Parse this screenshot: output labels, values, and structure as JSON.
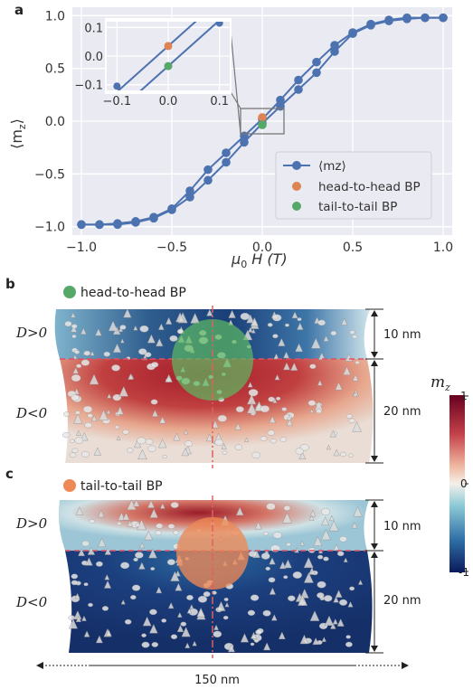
{
  "panel_labels": {
    "a": "a",
    "b": "b",
    "c": "c"
  },
  "colors": {
    "series_blue": "#4c72b0",
    "head_to_head": "#dd8452",
    "tail_to_tail": "#55a868",
    "green_sphere": "#5dbb63",
    "orange_sphere": "#ee8855",
    "plot_background": "#eaeaf2"
  },
  "chart_data": [
    {
      "type": "line",
      "xlabel": "μ0 H (T)",
      "ylabel": "⟨mz⟩",
      "xlim": [
        -1.05,
        1.05
      ],
      "ylim": [
        -1.08,
        1.08
      ],
      "x_ticks": [
        "−1.0",
        "−0.5",
        "0.0",
        "0.5",
        "1.0"
      ],
      "y_ticks": [
        "−1.0",
        "−0.5",
        "0.0",
        "0.5",
        "1.0"
      ],
      "grid": true,
      "legend_position": "lower-right",
      "series": [
        {
          "name": "⟨mz⟩",
          "branch": "up",
          "x": [
            -1.0,
            -0.9,
            -0.8,
            -0.7,
            -0.6,
            -0.5,
            -0.4,
            -0.3,
            -0.2,
            -0.1,
            0.0,
            0.1,
            0.2,
            0.3,
            0.4,
            0.5,
            0.6,
            0.7,
            0.8,
            0.9,
            1.0
          ],
          "y": [
            -0.98,
            -0.98,
            -0.97,
            -0.95,
            -0.91,
            -0.83,
            -0.66,
            -0.46,
            -0.3,
            -0.14,
            0.02,
            0.2,
            0.39,
            0.56,
            0.72,
            0.84,
            0.92,
            0.96,
            0.98,
            0.98,
            0.98
          ]
        },
        {
          "name": "⟨mz⟩",
          "branch": "down",
          "x": [
            -1.0,
            -0.9,
            -0.8,
            -0.7,
            -0.6,
            -0.5,
            -0.4,
            -0.3,
            -0.2,
            -0.1,
            0.0,
            0.1,
            0.2,
            0.3,
            0.4,
            0.5,
            0.6,
            0.7,
            0.8,
            0.9,
            1.0
          ],
          "y": [
            -0.98,
            -0.98,
            -0.98,
            -0.96,
            -0.92,
            -0.84,
            -0.72,
            -0.56,
            -0.39,
            -0.2,
            -0.02,
            0.14,
            0.3,
            0.46,
            0.66,
            0.83,
            0.91,
            0.95,
            0.97,
            0.98,
            0.98
          ]
        }
      ],
      "markers": [
        {
          "name": "head-to-head BP",
          "x": 0.0,
          "y": 0.035,
          "color": "#dd8452"
        },
        {
          "name": "tail-to-tail BP",
          "x": 0.0,
          "y": -0.035,
          "color": "#55a868"
        }
      ],
      "legend": [
        "⟨mz⟩",
        "head-to-head BP",
        "tail-to-tail BP"
      ]
    },
    {
      "type": "line",
      "role": "inset",
      "xlim": [
        -0.12,
        0.12
      ],
      "ylim": [
        -0.12,
        0.12
      ],
      "x_ticks": [
        "−0.1",
        "0.0",
        "0.1"
      ],
      "y_ticks": [
        "0.1",
        "0.0",
        "−0.1"
      ],
      "grid": true,
      "series": [
        {
          "name": "up",
          "x": [
            -0.1,
            0.1
          ],
          "y": [
            -0.125,
            0.195
          ]
        },
        {
          "name": "down",
          "x": [
            -0.1,
            0.1
          ],
          "y": [
            -0.195,
            0.125
          ]
        }
      ],
      "markers": [
        {
          "name": "head-to-head BP",
          "x": 0.0,
          "y": 0.035,
          "color": "#dd8452"
        },
        {
          "name": "tail-to-tail BP",
          "x": 0.0,
          "y": -0.035,
          "color": "#55a868"
        }
      ]
    }
  ],
  "legend": {
    "mz": "⟨mz⟩",
    "head_to_head": "head-to-head BP",
    "tail_to_tail": "tail-to-tail BP"
  },
  "axis": {
    "x_main": "μ",
    "x_sub": "0",
    "x_rest": " H (T)",
    "y_left": "⟨m",
    "y_sub": "z",
    "y_right": "⟩"
  },
  "panel_b": {
    "title": "head-to-head BP",
    "region_top": "D>0",
    "region_bottom": "D<0",
    "dim_top": "10 nm",
    "dim_bottom": "20 nm"
  },
  "panel_c": {
    "title": "tail-to-tail BP",
    "region_top": "D>0",
    "region_bottom": "D<0",
    "dim_top": "10 nm",
    "dim_bottom": "20 nm"
  },
  "width_label": "150 nm",
  "colorbar": {
    "label_main": "m",
    "label_sub": "z",
    "ticks": [
      "1",
      "0",
      "-1"
    ]
  }
}
